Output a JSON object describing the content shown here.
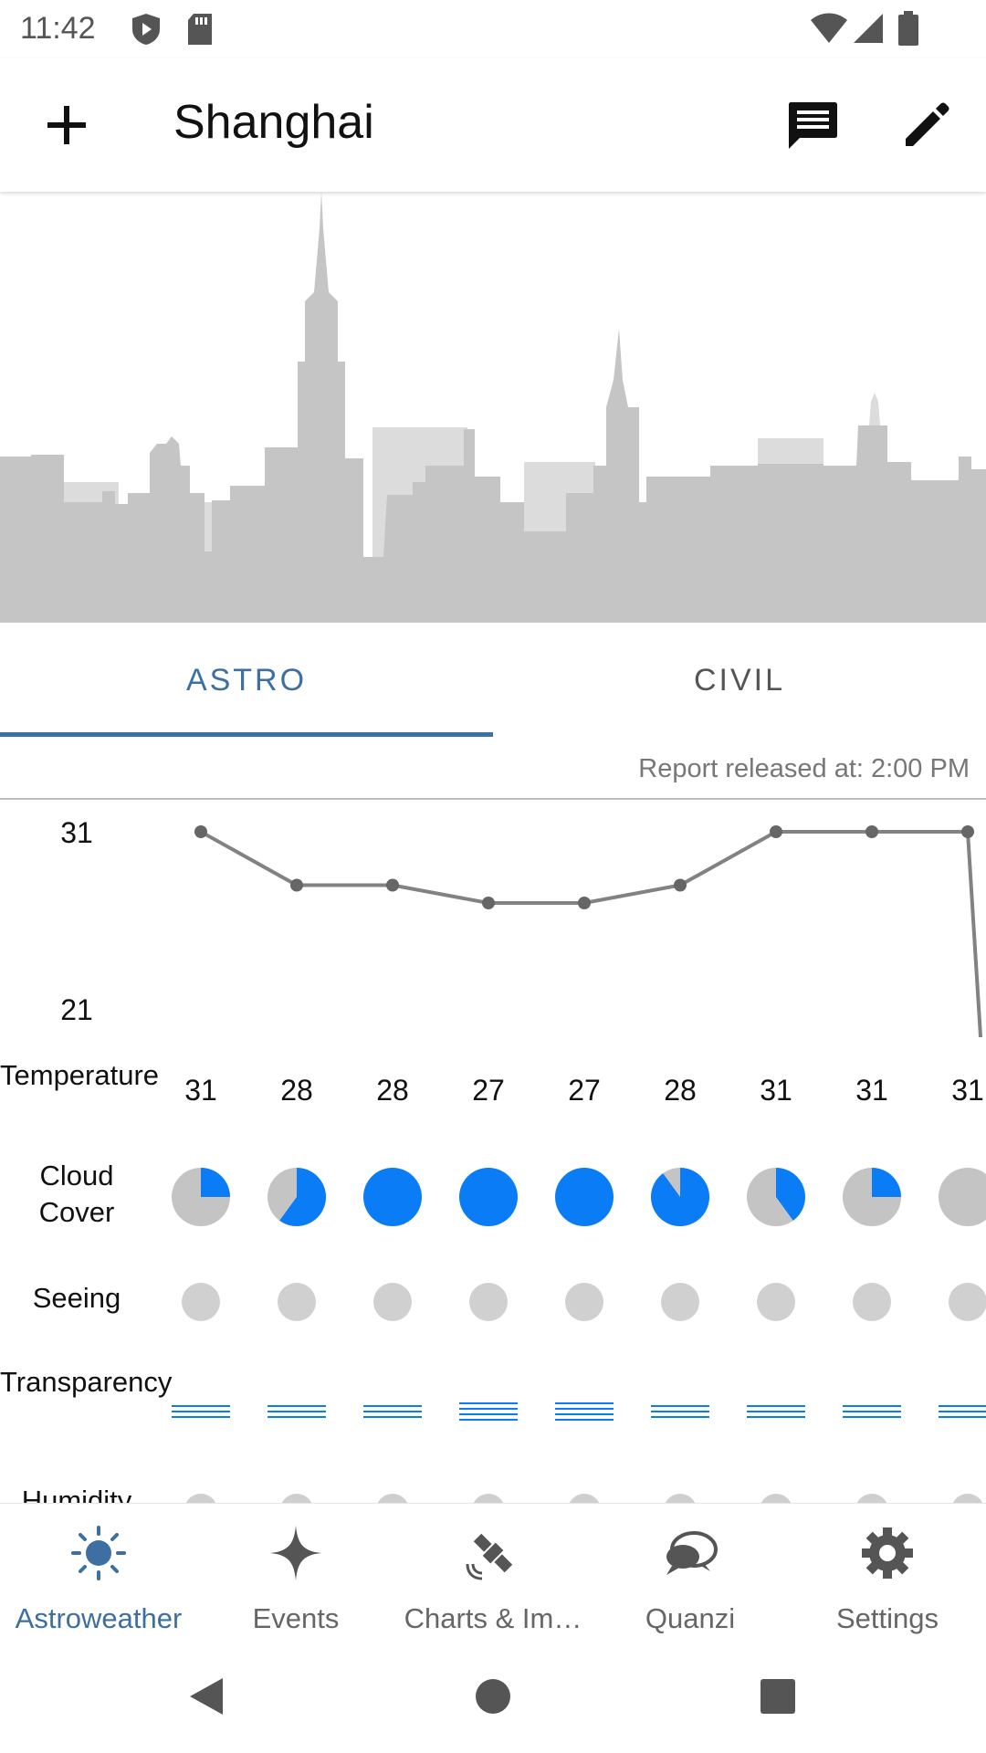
{
  "status_bar": {
    "time": "11:42"
  },
  "app_bar": {
    "title": "Shanghai"
  },
  "tabs": [
    {
      "label": "ASTRO",
      "selected": true
    },
    {
      "label": "CIVIL",
      "selected": false
    }
  ],
  "report_released": "Report released at: 2:00 PM",
  "forecast": {
    "temperature_axis": {
      "max": "31",
      "min": "21"
    },
    "temperature_label": "Temperature",
    "temperatures": [
      31,
      28,
      28,
      27,
      27,
      28,
      31,
      31,
      31
    ],
    "cloud_cover_label": "Cloud Cover",
    "cloud_cover_fraction": [
      0.25,
      0.6,
      1.0,
      1.0,
      1.0,
      0.9,
      0.4,
      0.25,
      0.0
    ],
    "seeing_label": "Seeing",
    "transparency_label": "Transparency",
    "transparency_lines": [
      3,
      3,
      3,
      4,
      4,
      3,
      3,
      3,
      3
    ],
    "humidity_label": "Humidity"
  },
  "bottom_nav": [
    {
      "label": "Astroweather",
      "icon": "sun-icon",
      "active": true
    },
    {
      "label": "Events",
      "icon": "sparkle-icon",
      "active": false
    },
    {
      "label": "Charts & Im…",
      "icon": "satellite-icon",
      "active": false
    },
    {
      "label": "Quanzi",
      "icon": "chat-bubbles-icon",
      "active": false
    },
    {
      "label": "Settings",
      "icon": "gear-icon",
      "active": false
    }
  ],
  "colors": {
    "accent": "#3d6fa3",
    "cloud_blue": "#0a7cf5",
    "cloud_gray": "#c4c4c4",
    "line_gray": "#828282"
  }
}
